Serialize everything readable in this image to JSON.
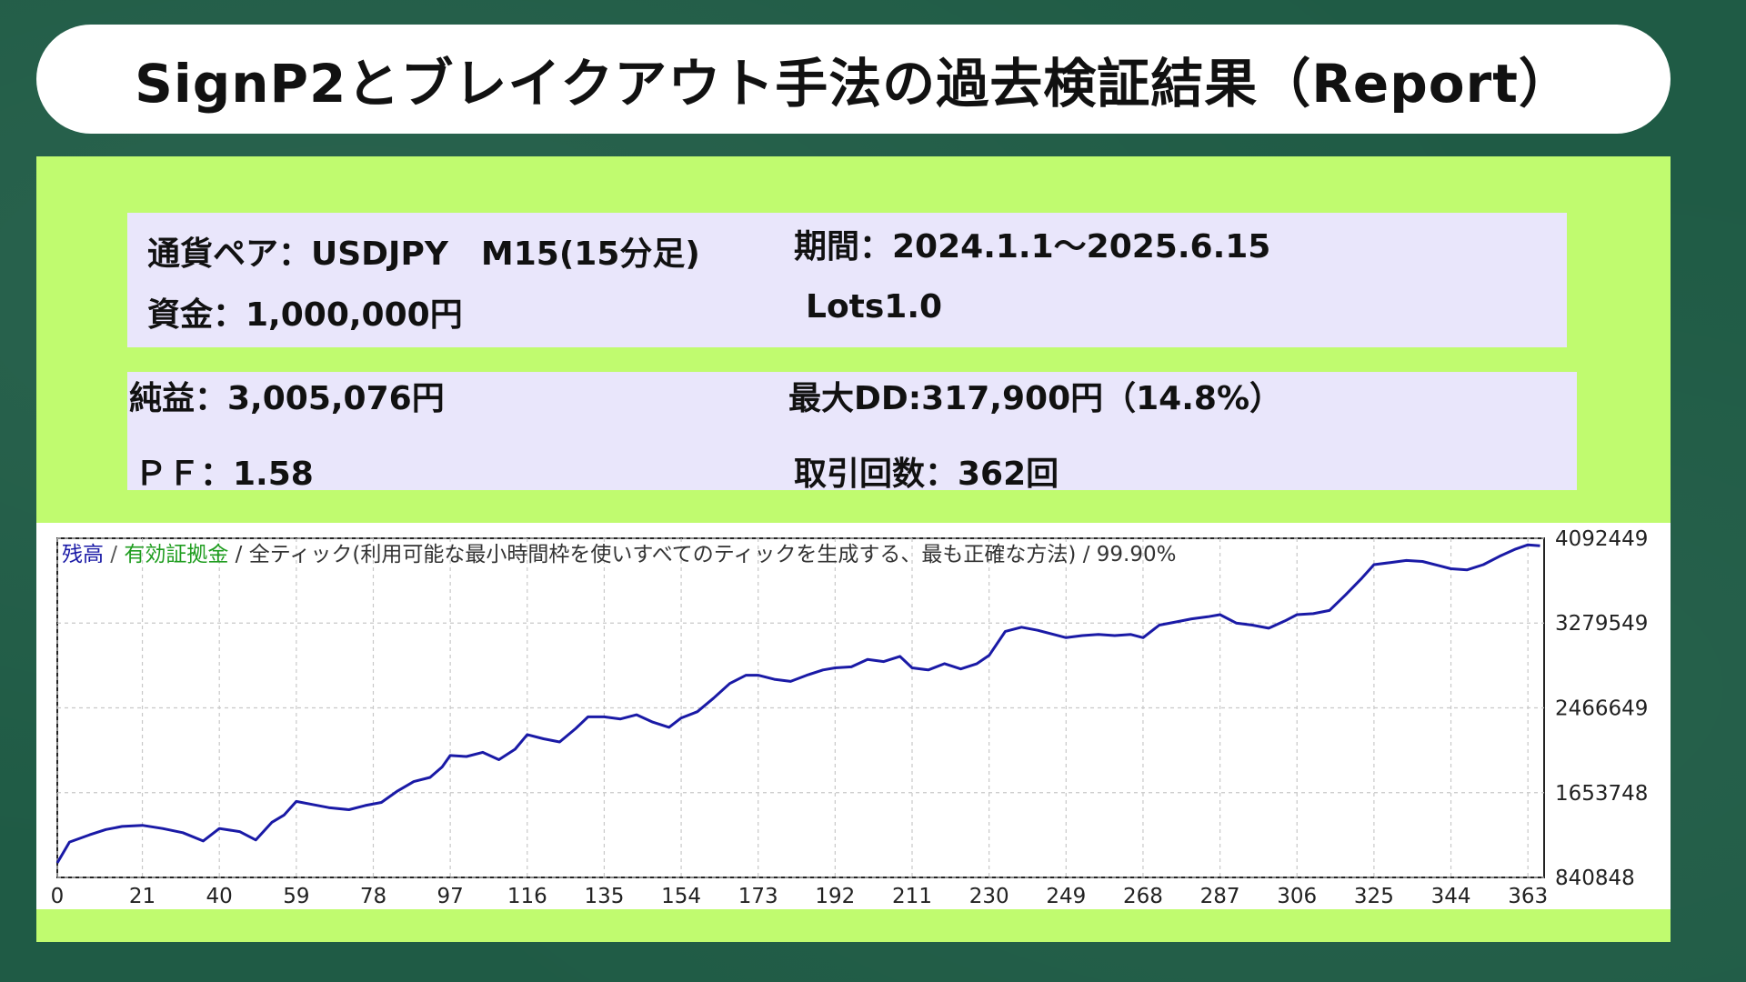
{
  "title": "SignP2とブレイクアウト手法の過去検証結果（Report）",
  "info": {
    "pair": "通貨ペア：USDJPY　M15(15分足)",
    "period": "期間：2024.1.1～2025.6.15",
    "capital": "資金：1,000,000円",
    "lots": "Lots1.0",
    "net_profit": "純益：3,005,076円",
    "max_dd": "最大DD:317,900円（14.8%）",
    "pf": "ＰＦ：1.58",
    "trades": "取引回数：362回"
  },
  "chart_header": {
    "balance": "残高",
    "sep1": " / ",
    "equity": "有効証拠金",
    "rest": " / 全ティック(利用可能な最小時間枠を使いすべてのティックを生成する、最も正確な方法) / 99.90%"
  },
  "colors": {
    "background": "#1f5b45",
    "panel": "#c0fb6f",
    "info_box": "#e9e6fb",
    "balance_line": "#1a1aa6",
    "equity_label": "#1f9d1f"
  },
  "chart_data": {
    "type": "line",
    "title": "",
    "xlabel": "",
    "ylabel": "",
    "x_ticks": [
      "0",
      "21",
      "40",
      "59",
      "78",
      "97",
      "116",
      "135",
      "154",
      "173",
      "192",
      "211",
      "230",
      "249",
      "268",
      "287",
      "306",
      "325",
      "344",
      "363"
    ],
    "y_ticks": [
      "4092449",
      "3279549",
      "2466649",
      "1653748",
      "840848"
    ],
    "xlim": [
      0,
      367
    ],
    "ylim": [
      840848,
      4092449
    ],
    "grid": true,
    "series": [
      {
        "values": [
          [
            0,
            980000
          ],
          [
            3,
            1180000
          ],
          [
            8,
            1250000
          ],
          [
            12,
            1300000
          ],
          [
            16,
            1330000
          ],
          [
            21,
            1340000
          ],
          [
            26,
            1310000
          ],
          [
            31,
            1270000
          ],
          [
            36,
            1190000
          ],
          [
            40,
            1310000
          ],
          [
            45,
            1280000
          ],
          [
            49,
            1200000
          ],
          [
            53,
            1370000
          ],
          [
            56,
            1440000
          ],
          [
            59,
            1570000
          ],
          [
            63,
            1540000
          ],
          [
            67,
            1510000
          ],
          [
            72,
            1490000
          ],
          [
            76,
            1530000
          ],
          [
            80,
            1560000
          ],
          [
            84,
            1670000
          ],
          [
            88,
            1760000
          ],
          [
            92,
            1800000
          ],
          [
            95,
            1900000
          ],
          [
            97,
            2010000
          ],
          [
            101,
            2000000
          ],
          [
            105,
            2040000
          ],
          [
            109,
            1970000
          ],
          [
            113,
            2070000
          ],
          [
            116,
            2210000
          ],
          [
            120,
            2170000
          ],
          [
            124,
            2140000
          ],
          [
            128,
            2270000
          ],
          [
            131,
            2380000
          ],
          [
            135,
            2380000
          ],
          [
            139,
            2360000
          ],
          [
            143,
            2400000
          ],
          [
            147,
            2330000
          ],
          [
            151,
            2280000
          ],
          [
            154,
            2370000
          ],
          [
            158,
            2430000
          ],
          [
            162,
            2560000
          ],
          [
            166,
            2700000
          ],
          [
            170,
            2780000
          ],
          [
            173,
            2780000
          ],
          [
            177,
            2740000
          ],
          [
            181,
            2720000
          ],
          [
            185,
            2780000
          ],
          [
            189,
            2830000
          ],
          [
            192,
            2850000
          ],
          [
            196,
            2860000
          ],
          [
            200,
            2930000
          ],
          [
            204,
            2910000
          ],
          [
            208,
            2960000
          ],
          [
            211,
            2850000
          ],
          [
            215,
            2830000
          ],
          [
            219,
            2890000
          ],
          [
            223,
            2840000
          ],
          [
            227,
            2890000
          ],
          [
            230,
            2970000
          ],
          [
            234,
            3200000
          ],
          [
            238,
            3240000
          ],
          [
            242,
            3210000
          ],
          [
            246,
            3170000
          ],
          [
            249,
            3140000
          ],
          [
            253,
            3160000
          ],
          [
            257,
            3170000
          ],
          [
            261,
            3160000
          ],
          [
            265,
            3170000
          ],
          [
            268,
            3140000
          ],
          [
            272,
            3260000
          ],
          [
            276,
            3290000
          ],
          [
            280,
            3320000
          ],
          [
            284,
            3340000
          ],
          [
            287,
            3360000
          ],
          [
            291,
            3280000
          ],
          [
            295,
            3260000
          ],
          [
            299,
            3230000
          ],
          [
            303,
            3300000
          ],
          [
            306,
            3360000
          ],
          [
            310,
            3370000
          ],
          [
            314,
            3400000
          ],
          [
            318,
            3550000
          ],
          [
            322,
            3710000
          ],
          [
            325,
            3840000
          ],
          [
            329,
            3860000
          ],
          [
            333,
            3880000
          ],
          [
            337,
            3870000
          ],
          [
            341,
            3830000
          ],
          [
            344,
            3800000
          ],
          [
            348,
            3790000
          ],
          [
            352,
            3840000
          ],
          [
            356,
            3920000
          ],
          [
            360,
            3990000
          ],
          [
            363,
            4030000
          ],
          [
            366,
            4020000
          ]
        ]
      }
    ]
  }
}
